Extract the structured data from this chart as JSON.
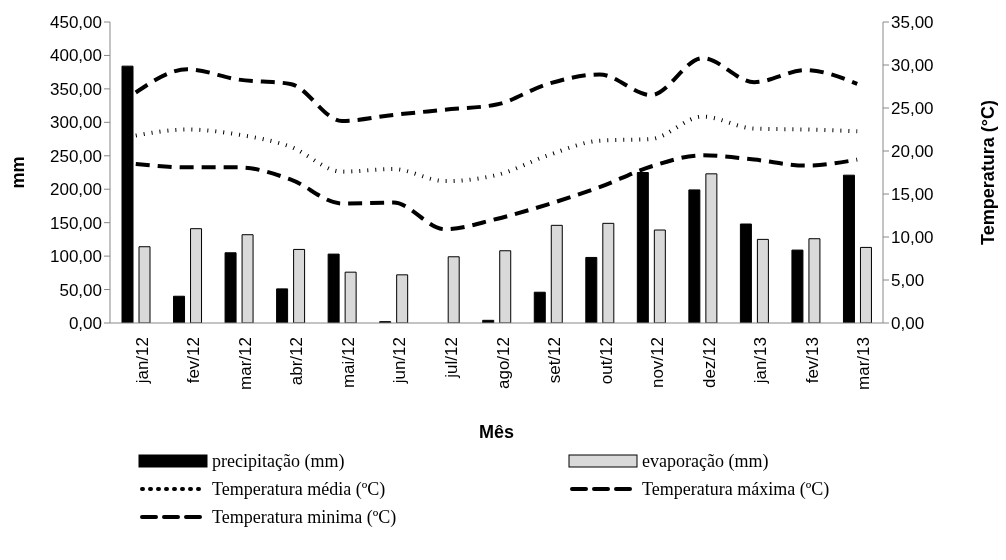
{
  "chart_data": {
    "type": "bar",
    "xlabel": "Mês",
    "ylabel": "mm",
    "y2label": "Temperatura (°C)",
    "categories": [
      "jan/12",
      "fev/12",
      "mar/12",
      "abr/12",
      "mai/12",
      "jun/12",
      "jul/12",
      "ago/12",
      "set/12",
      "out/12",
      "nov/12",
      "dez/12",
      "jan/13",
      "fev/13",
      "mar/13"
    ],
    "series": [
      {
        "name": "precipitação (mm)",
        "color": "#000000",
        "values": [
          384,
          40,
          105,
          51,
          103,
          2,
          0,
          4,
          46,
          98,
          225,
          199,
          148,
          109,
          221
        ]
      },
      {
        "name": "evaporação (mm)",
        "color": "#d9d9d9",
        "values": [
          114,
          141,
          132,
          110,
          76,
          72,
          99,
          108,
          146,
          149,
          139,
          223,
          125,
          126,
          113
        ]
      },
      {
        "name": "Temperatura média (ºC)",
        "type": "line",
        "axis": "y2",
        "color": "#000000",
        "line_style": "dotted",
        "values": [
          21.8,
          22.5,
          21.9,
          20.5,
          17.6,
          17.9,
          16.5,
          17.2,
          19.5,
          21.2,
          21.4,
          24.0,
          22.6,
          22.5,
          22.3
        ]
      },
      {
        "name": "Temperatura máxima (ºC)",
        "type": "line",
        "axis": "y2",
        "color": "#000000",
        "line_style": "dashed",
        "values": [
          26.8,
          29.5,
          28.3,
          27.8,
          23.5,
          24.2,
          24.8,
          25.4,
          27.8,
          28.9,
          26.5,
          30.8,
          28.0,
          29.4,
          27.8
        ]
      },
      {
        "name": "Temperatura minima (ºC)",
        "type": "line",
        "axis": "y2",
        "color": "#000000",
        "line_style": "dashed",
        "values": [
          18.5,
          18.1,
          18.1,
          16.7,
          13.9,
          14.0,
          10.9,
          12.1,
          13.8,
          15.8,
          18.2,
          19.5,
          19.0,
          18.3,
          19.0
        ]
      }
    ],
    "ylim": [
      0,
      450
    ],
    "yticks": [
      {
        "value": 0,
        "label": "0,00"
      },
      {
        "value": 50,
        "label": "50,00"
      },
      {
        "value": 100,
        "label": "100,00"
      },
      {
        "value": 150,
        "label": "150,00"
      },
      {
        "value": 200,
        "label": "200,00"
      },
      {
        "value": 250,
        "label": "250,00"
      },
      {
        "value": 300,
        "label": "300,00"
      },
      {
        "value": 350,
        "label": "350,00"
      },
      {
        "value": 400,
        "label": "400,00"
      },
      {
        "value": 450,
        "label": "450,00"
      }
    ],
    "y2lim": [
      0,
      35
    ],
    "y2ticks": [
      {
        "value": 0,
        "label": "0,00"
      },
      {
        "value": 5,
        "label": "5,00"
      },
      {
        "value": 10,
        "label": "10,00"
      },
      {
        "value": 15,
        "label": "15,00"
      },
      {
        "value": 20,
        "label": "20,00"
      },
      {
        "value": 25,
        "label": "25,00"
      },
      {
        "value": 30,
        "label": "30,00"
      },
      {
        "value": 35,
        "label": "35,00"
      }
    ],
    "grid": false,
    "legend": "bottom",
    "marker": "none"
  }
}
